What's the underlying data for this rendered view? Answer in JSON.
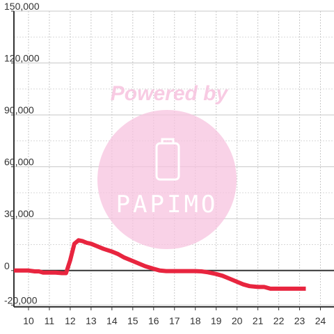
{
  "chart_data": {
    "type": "line",
    "title": "",
    "xlabel": "",
    "ylabel": "",
    "xlim": [
      9.3,
      24.65
    ],
    "ylim": [
      -21000,
      150000
    ],
    "grid": true,
    "x_ticks": [
      10,
      11,
      12,
      13,
      14,
      15,
      16,
      17,
      18,
      19,
      20,
      21,
      22,
      23,
      24
    ],
    "x_tick_labels": [
      "10",
      "11",
      "12",
      "13",
      "14",
      "15",
      "16",
      "17",
      "18",
      "19",
      "20",
      "21",
      "22",
      "23",
      "24"
    ],
    "y_ticks": [
      -20000,
      0,
      30000,
      60000,
      90000,
      120000,
      150000
    ],
    "y_tick_labels": [
      "-20,000",
      "0",
      "30,000",
      "60,000",
      "90,000",
      "120,000",
      "150,000"
    ],
    "series": [
      {
        "color": "#e8253f",
        "x": [
          9.3,
          9.7,
          10.0,
          10.3,
          10.5,
          10.7,
          11.0,
          11.3,
          11.6,
          11.8,
          12.0,
          12.2,
          12.4,
          12.6,
          12.8,
          13.0,
          13.3,
          13.6,
          14.0,
          14.3,
          14.6,
          15.0,
          15.3,
          15.6,
          16.0,
          16.3,
          16.6,
          17.0,
          17.5,
          18.0,
          18.3,
          18.6,
          19.0,
          19.3,
          19.6,
          20.0,
          20.3,
          20.6,
          21.0,
          21.3,
          21.6,
          21.8,
          22.0,
          22.5,
          23.0,
          23.3
        ],
        "y": [
          0,
          0,
          0,
          -500,
          -500,
          -1200,
          -1200,
          -1200,
          -1500,
          -1500,
          6000,
          15500,
          17500,
          17000,
          16000,
          15500,
          14000,
          12500,
          11000,
          9500,
          7500,
          5500,
          4000,
          2500,
          1000,
          0,
          -300,
          -300,
          -300,
          -300,
          -500,
          -1000,
          -2000,
          -3000,
          -4500,
          -6500,
          -8000,
          -9000,
          -9500,
          -9500,
          -10500,
          -10500,
          -10500,
          -10500,
          -10500,
          -10500
        ]
      }
    ]
  },
  "watermark": {
    "text": "Powered by",
    "logo_text": "PAPIMO",
    "color": "#f7c3df",
    "icon": "phone-icon"
  }
}
